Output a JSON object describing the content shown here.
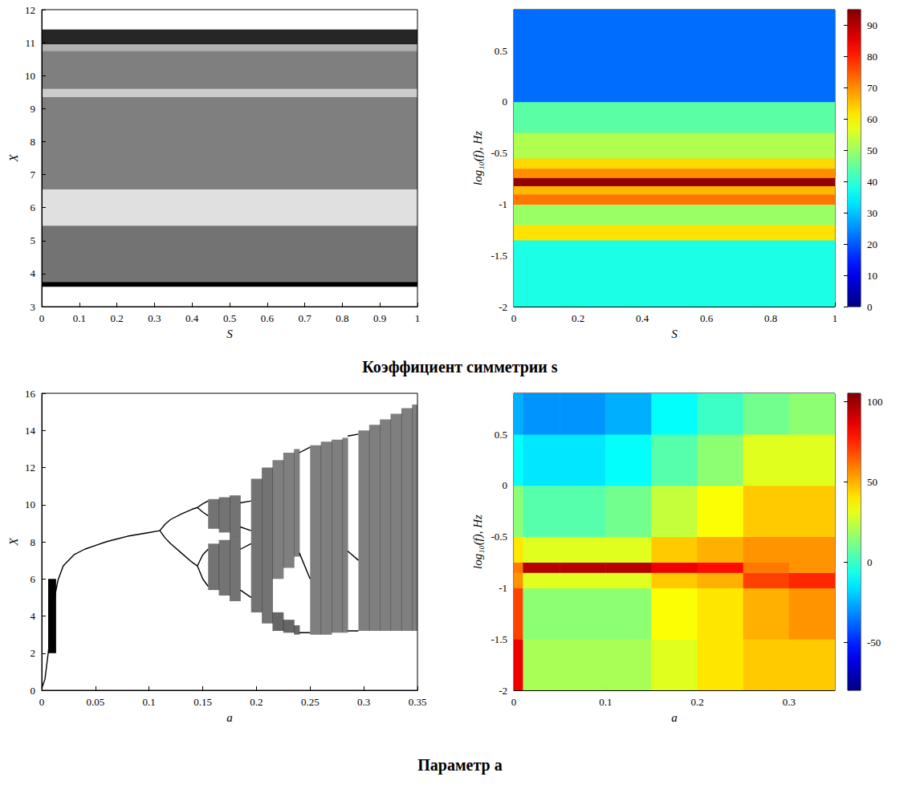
{
  "chart_data": [
    {
      "type": "bifurcation",
      "title": "Коэффициент симметрии s",
      "x_label": "S",
      "y_label": "X",
      "xlim": [
        0,
        1
      ],
      "ylim": [
        3,
        12
      ],
      "xticks": [
        0,
        0.1,
        0.2,
        0.3,
        0.4,
        0.5,
        0.6,
        0.7,
        0.8,
        0.9,
        1
      ],
      "yticks": [
        3,
        4,
        5,
        6,
        7,
        8,
        9,
        10,
        11,
        12
      ],
      "grid": false,
      "cells": [
        {
          "x": [
            0,
            1
          ],
          "y": [
            3.6,
            3.75
          ],
          "density": 1
        },
        {
          "x": [
            0,
            1
          ],
          "y": [
            3.75,
            5.45
          ],
          "density": 0.55
        },
        {
          "x": [
            0,
            1
          ],
          "y": [
            5.45,
            6.55
          ],
          "density": 0.12
        },
        {
          "x": [
            0,
            1
          ],
          "y": [
            6.55,
            9.35
          ],
          "density": 0.5
        },
        {
          "x": [
            0,
            1
          ],
          "y": [
            9.35,
            9.6
          ],
          "density": 0.2
        },
        {
          "x": [
            0,
            1
          ],
          "y": [
            9.6,
            10.75
          ],
          "density": 0.5
        },
        {
          "x": [
            0,
            1
          ],
          "y": [
            10.75,
            10.95
          ],
          "density": 0.3
        },
        {
          "x": [
            0,
            1
          ],
          "y": [
            10.95,
            11.4
          ],
          "density": 0.85
        }
      ],
      "branches": []
    },
    {
      "type": "spectrogram",
      "x_label": "S",
      "y_label": "log₁₀(f), Hz",
      "xlim": [
        0,
        1
      ],
      "ylim": [
        -2,
        0.9
      ],
      "xticks": [
        0,
        0.2,
        0.4,
        0.6,
        0.8,
        1
      ],
      "yticks": [
        -2,
        -1.5,
        -1,
        -0.5,
        0,
        0.5
      ],
      "grid": false,
      "x_edges": [
        0,
        1
      ],
      "y_edges": [
        -2,
        -1.35,
        -1.2,
        -1.0,
        -0.9,
        -0.82,
        -0.74,
        -0.65,
        -0.55,
        -0.3,
        0,
        0.9
      ],
      "power": [
        [
          38,
          62,
          50,
          72,
          66,
          93,
          70,
          63,
          52,
          44,
          22
        ]
      ],
      "colorbar": {
        "lim": [
          0,
          95
        ],
        "ticks": [
          0,
          10,
          20,
          30,
          40,
          50,
          60,
          70,
          80,
          90
        ]
      }
    },
    {
      "type": "bifurcation",
      "title": "Параметр a",
      "x_label": "a",
      "y_label": "X",
      "xlim": [
        0,
        0.35
      ],
      "ylim": [
        0,
        16
      ],
      "xticks": [
        0,
        0.05,
        0.1,
        0.15,
        0.2,
        0.25,
        0.3,
        0.35
      ],
      "yticks": [
        0,
        2,
        4,
        6,
        8,
        10,
        12,
        14,
        16
      ],
      "grid": false,
      "cells": [
        {
          "x": [
            0.006,
            0.013
          ],
          "y": [
            2.0,
            6.0
          ],
          "density": 1
        },
        {
          "x": [
            0.155,
            0.165
          ],
          "y": [
            8.7,
            10.3
          ],
          "density": 0.55
        },
        {
          "x": [
            0.155,
            0.165
          ],
          "y": [
            5.4,
            7.9
          ],
          "density": 0.55
        },
        {
          "x": [
            0.165,
            0.175
          ],
          "y": [
            8.5,
            10.4
          ],
          "density": 0.55
        },
        {
          "x": [
            0.165,
            0.175
          ],
          "y": [
            5.1,
            8.1
          ],
          "density": 0.55
        },
        {
          "x": [
            0.175,
            0.185
          ],
          "y": [
            8.3,
            10.5
          ],
          "density": 0.55
        },
        {
          "x": [
            0.175,
            0.185
          ],
          "y": [
            4.8,
            8.3
          ],
          "density": 0.55
        },
        {
          "x": [
            0.195,
            0.205
          ],
          "y": [
            4.2,
            11.4
          ],
          "density": 0.55
        },
        {
          "x": [
            0.205,
            0.215
          ],
          "y": [
            3.6,
            12.0
          ],
          "density": 0.55
        },
        {
          "x": [
            0.215,
            0.225
          ],
          "y": [
            3.2,
            4.2
          ],
          "density": 0.6
        },
        {
          "x": [
            0.215,
            0.225
          ],
          "y": [
            6.0,
            12.4
          ],
          "density": 0.5
        },
        {
          "x": [
            0.225,
            0.235
          ],
          "y": [
            3.1,
            3.8
          ],
          "density": 0.6
        },
        {
          "x": [
            0.225,
            0.235
          ],
          "y": [
            6.6,
            12.8
          ],
          "density": 0.5
        },
        {
          "x": [
            0.235,
            0.24
          ],
          "y": [
            3.0,
            3.5
          ],
          "density": 0.6
        },
        {
          "x": [
            0.235,
            0.24
          ],
          "y": [
            7.2,
            13.0
          ],
          "density": 0.5
        },
        {
          "x": [
            0.25,
            0.26
          ],
          "y": [
            3.0,
            13.2
          ],
          "density": 0.5
        },
        {
          "x": [
            0.26,
            0.27
          ],
          "y": [
            3.0,
            13.4
          ],
          "density": 0.5
        },
        {
          "x": [
            0.27,
            0.28
          ],
          "y": [
            3.1,
            13.5
          ],
          "density": 0.5
        },
        {
          "x": [
            0.28,
            0.285
          ],
          "y": [
            3.1,
            13.6
          ],
          "density": 0.5
        },
        {
          "x": [
            0.295,
            0.305
          ],
          "y": [
            3.2,
            14.0
          ],
          "density": 0.5
        },
        {
          "x": [
            0.305,
            0.315
          ],
          "y": [
            3.2,
            14.3
          ],
          "density": 0.5
        },
        {
          "x": [
            0.315,
            0.325
          ],
          "y": [
            3.2,
            14.6
          ],
          "density": 0.5
        },
        {
          "x": [
            0.325,
            0.335
          ],
          "y": [
            3.2,
            14.9
          ],
          "density": 0.5
        },
        {
          "x": [
            0.335,
            0.345
          ],
          "y": [
            3.2,
            15.2
          ],
          "density": 0.5
        },
        {
          "x": [
            0.345,
            0.35
          ],
          "y": [
            3.2,
            15.4
          ],
          "density": 0.5
        }
      ],
      "branches": [
        [
          [
            0,
            0.1
          ],
          [
            0.003,
            0.6
          ],
          [
            0.006,
            2.0
          ],
          [
            0.009,
            3.6
          ],
          [
            0.012,
            5.0
          ],
          [
            0.015,
            5.9
          ],
          [
            0.02,
            6.7
          ],
          [
            0.03,
            7.3
          ],
          [
            0.04,
            7.6
          ],
          [
            0.05,
            7.8
          ],
          [
            0.06,
            8.0
          ],
          [
            0.07,
            8.15
          ],
          [
            0.08,
            8.3
          ],
          [
            0.09,
            8.4
          ],
          [
            0.1,
            8.5
          ],
          [
            0.11,
            8.6
          ]
        ],
        [
          [
            0.11,
            8.6
          ],
          [
            0.115,
            8.95
          ],
          [
            0.12,
            9.2
          ],
          [
            0.13,
            9.5
          ],
          [
            0.14,
            9.75
          ],
          [
            0.145,
            9.85
          ]
        ],
        [
          [
            0.11,
            8.6
          ],
          [
            0.115,
            8.2
          ],
          [
            0.12,
            7.9
          ],
          [
            0.13,
            7.4
          ],
          [
            0.14,
            6.9
          ],
          [
            0.145,
            6.7
          ]
        ],
        [
          [
            0.145,
            9.85
          ],
          [
            0.15,
            10.05
          ],
          [
            0.155,
            10.2
          ]
        ],
        [
          [
            0.145,
            9.85
          ],
          [
            0.15,
            9.6
          ],
          [
            0.155,
            9.4
          ]
        ],
        [
          [
            0.145,
            6.7
          ],
          [
            0.15,
            7.3
          ],
          [
            0.155,
            7.6
          ]
        ],
        [
          [
            0.145,
            6.7
          ],
          [
            0.15,
            6.0
          ],
          [
            0.155,
            5.6
          ]
        ],
        [
          [
            0.185,
            10.1
          ],
          [
            0.195,
            10.2
          ]
        ],
        [
          [
            0.185,
            8.8
          ],
          [
            0.195,
            8.6
          ]
        ],
        [
          [
            0.185,
            7.6
          ],
          [
            0.195,
            7.9
          ]
        ],
        [
          [
            0.185,
            5.4
          ],
          [
            0.195,
            5.0
          ]
        ],
        [
          [
            0.24,
            12.8
          ],
          [
            0.25,
            13.1
          ]
        ],
        [
          [
            0.24,
            7.4
          ],
          [
            0.25,
            6.0
          ]
        ],
        [
          [
            0.24,
            3.1
          ],
          [
            0.25,
            3.1
          ]
        ],
        [
          [
            0.285,
            13.7
          ],
          [
            0.295,
            13.8
          ]
        ],
        [
          [
            0.285,
            7.5
          ],
          [
            0.295,
            7.0
          ]
        ],
        [
          [
            0.285,
            3.2
          ],
          [
            0.295,
            3.2
          ]
        ]
      ]
    },
    {
      "type": "spectrogram",
      "x_label": "a",
      "y_label": "log₁₀(f), Hz",
      "xlim": [
        0,
        0.35
      ],
      "ylim": [
        -2,
        0.9
      ],
      "xticks": [
        0,
        0.1,
        0.2,
        0.3
      ],
      "yticks": [
        -2,
        -1.5,
        -1,
        -0.5,
        0,
        0.5
      ],
      "grid": false,
      "x_edges": [
        0,
        0.01,
        0.05,
        0.1,
        0.15,
        0.2,
        0.25,
        0.3,
        0.35
      ],
      "y_edges": [
        -2,
        -1.5,
        -1.0,
        -0.85,
        -0.75,
        -0.5,
        0,
        0.5,
        0.9
      ],
      "power": [
        [
          85,
          70,
          55,
          60,
          40,
          15,
          -10,
          -25
        ],
        [
          20,
          15,
          30,
          95,
          30,
          5,
          -15,
          -30
        ],
        [
          20,
          15,
          30,
          95,
          30,
          5,
          -15,
          -30
        ],
        [
          20,
          15,
          30,
          95,
          30,
          10,
          -10,
          -25
        ],
        [
          30,
          35,
          45,
          85,
          45,
          25,
          5,
          -10
        ],
        [
          40,
          40,
          50,
          80,
          50,
          35,
          15,
          0
        ],
        [
          45,
          50,
          70,
          60,
          55,
          45,
          30,
          10
        ],
        [
          45,
          55,
          75,
          55,
          55,
          45,
          30,
          15
        ]
      ],
      "colorbar": {
        "lim": [
          -80,
          105
        ],
        "ticks": [
          -50,
          0,
          50,
          100
        ]
      }
    }
  ]
}
